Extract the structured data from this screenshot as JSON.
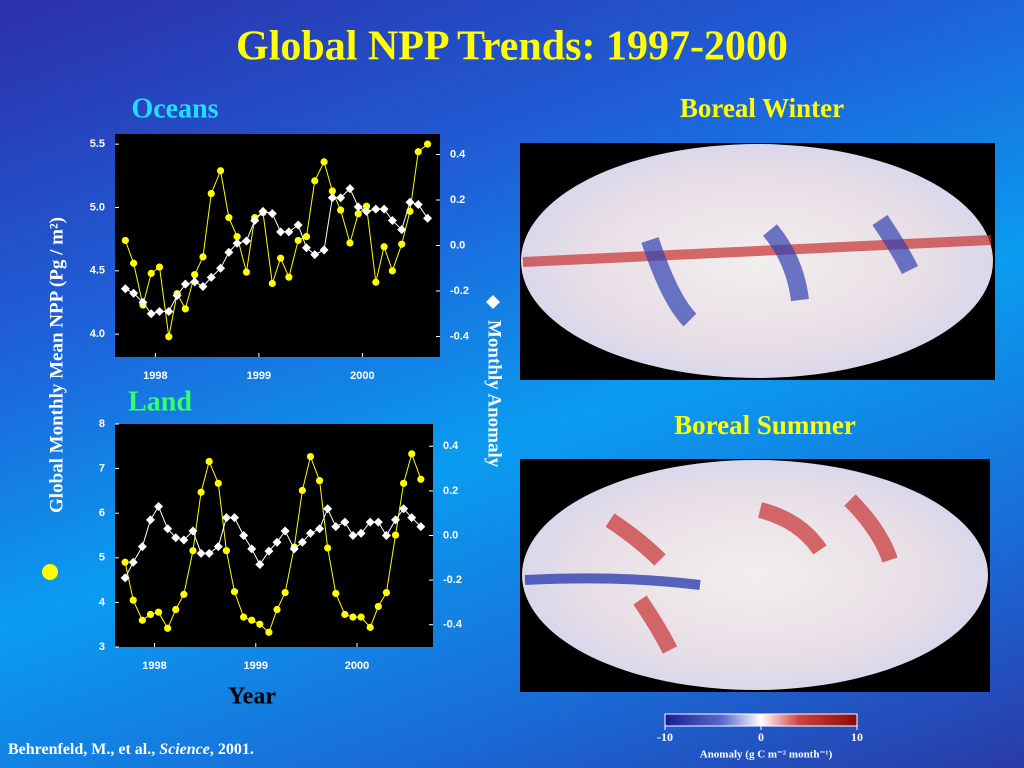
{
  "title": "Global NPP Trends: 1997-2000",
  "chart_data": [
    {
      "type": "line",
      "title": "Oceans",
      "x": [
        1997.71,
        1997.79,
        1997.88,
        1997.96,
        1998.04,
        1998.13,
        1998.21,
        1998.29,
        1998.38,
        1998.46,
        1998.54,
        1998.63,
        1998.71,
        1998.79,
        1998.88,
        1998.96,
        1999.04,
        1999.13,
        1999.21,
        1999.29,
        1999.38,
        1999.46,
        1999.54,
        1999.63,
        1999.71,
        1999.79,
        1999.88,
        1999.96,
        2000.04,
        2000.13,
        2000.21,
        2000.29,
        2000.38,
        2000.46,
        2000.54,
        2000.63
      ],
      "xlim": [
        1997.61,
        2000.75
      ],
      "xticks": [
        1998,
        1999,
        2000
      ],
      "ylim": [
        3.82,
        5.58
      ],
      "yticks": [
        {
          "value": 4,
          "label": "4.0"
        },
        4.5,
        {
          "value": 5,
          "label": "5.0"
        },
        5.5
      ],
      "y2lim": [
        -0.49,
        0.49
      ],
      "y2ticks": [
        -0.4,
        -0.2,
        {
          "value": 0,
          "label": "0.0"
        },
        0.2,
        0.4
      ],
      "series": [
        {
          "name": "Global Monthly Mean NPP (Pg / m²)",
          "color": "#ffff00",
          "marker": "circle",
          "values": [
            4.74,
            4.56,
            4.23,
            4.48,
            4.53,
            3.98,
            4.32,
            4.2,
            4.47,
            4.61,
            5.11,
            5.29,
            4.92,
            4.77,
            4.49,
            4.92,
            4.96,
            4.4,
            4.6,
            4.45,
            4.74,
            4.77,
            5.21,
            5.36,
            5.13,
            4.98,
            4.72,
            4.95,
            5.01,
            4.41,
            4.69,
            4.5,
            4.71,
            4.97,
            5.44,
            5.5
          ]
        },
        {
          "name": "Monthly Anomaly",
          "color": "#ffffff",
          "marker": "diamond",
          "axis": "y2",
          "values": [
            -0.19,
            -0.21,
            -0.25,
            -0.3,
            -0.29,
            -0.29,
            -0.22,
            -0.17,
            -0.16,
            -0.18,
            -0.14,
            -0.1,
            -0.03,
            0.01,
            0.02,
            0.11,
            0.15,
            0.14,
            0.06,
            0.06,
            0.09,
            -0.01,
            -0.04,
            -0.02,
            0.21,
            0.21,
            0.25,
            0.17,
            0.15,
            0.16,
            0.16,
            0.11,
            0.07,
            0.19,
            0.18,
            0.12
          ]
        }
      ]
    },
    {
      "type": "line",
      "title": "Land",
      "x_label": "Year",
      "x": [
        1997.71,
        1997.79,
        1997.88,
        1997.96,
        1998.04,
        1998.13,
        1998.21,
        1998.29,
        1998.38,
        1998.46,
        1998.54,
        1998.63,
        1998.71,
        1998.79,
        1998.88,
        1998.96,
        1999.04,
        1999.13,
        1999.21,
        1999.29,
        1999.38,
        1999.46,
        1999.54,
        1999.63,
        1999.71,
        1999.79,
        1999.88,
        1999.96,
        2000.04,
        2000.13,
        2000.21,
        2000.29,
        2000.38,
        2000.46,
        2000.54,
        2000.63
      ],
      "xlim": [
        1997.61,
        2000.75
      ],
      "xticks": [
        1998,
        1999,
        2000
      ],
      "ylim": [
        3,
        8
      ],
      "yticks": [
        3,
        4,
        5,
        6,
        7,
        8
      ],
      "y2lim": [
        -0.5,
        0.5
      ],
      "y2ticks": [
        -0.4,
        -0.2,
        {
          "value": 0,
          "label": "0.0"
        },
        0.2,
        0.4
      ],
      "series": [
        {
          "color": "#ffff00",
          "marker": "circle",
          "values": [
            4.9,
            4.05,
            3.6,
            3.73,
            3.78,
            3.42,
            3.84,
            4.18,
            5.16,
            6.47,
            7.16,
            6.67,
            5.16,
            4.24,
            3.67,
            3.6,
            3.51,
            3.33,
            3.84,
            4.22,
            5.24,
            6.51,
            7.27,
            6.73,
            5.22,
            4.2,
            3.73,
            3.67,
            3.67,
            3.44,
            3.91,
            4.22,
            5.51,
            6.67,
            7.33,
            6.76
          ]
        },
        {
          "color": "#ffffff",
          "marker": "diamond",
          "axis": "y2",
          "values": [
            -0.19,
            -0.12,
            -0.05,
            0.07,
            0.13,
            0.03,
            -0.01,
            -0.02,
            0.02,
            -0.08,
            -0.08,
            -0.05,
            0.08,
            0.08,
            0,
            -0.06,
            -0.13,
            -0.07,
            -0.03,
            0.02,
            -0.06,
            -0.03,
            0.01,
            0.03,
            0.12,
            0.04,
            0.06,
            0,
            0.01,
            0.06,
            0.06,
            0,
            0.07,
            0.12,
            0.08,
            0.04
          ]
        }
      ]
    }
  ],
  "maps": [
    {
      "title": "Boreal Winter"
    },
    {
      "title": "Boreal Summer"
    }
  ],
  "colorbar": {
    "lim": [
      -10,
      10
    ],
    "ticks": [
      -10,
      0,
      10
    ],
    "label": "Anomaly (g C m⁻² month⁻¹)"
  },
  "citation": {
    "authors": "Behrenfeld, M., et al., ",
    "journal": "Science",
    "rest": ", 2001."
  }
}
